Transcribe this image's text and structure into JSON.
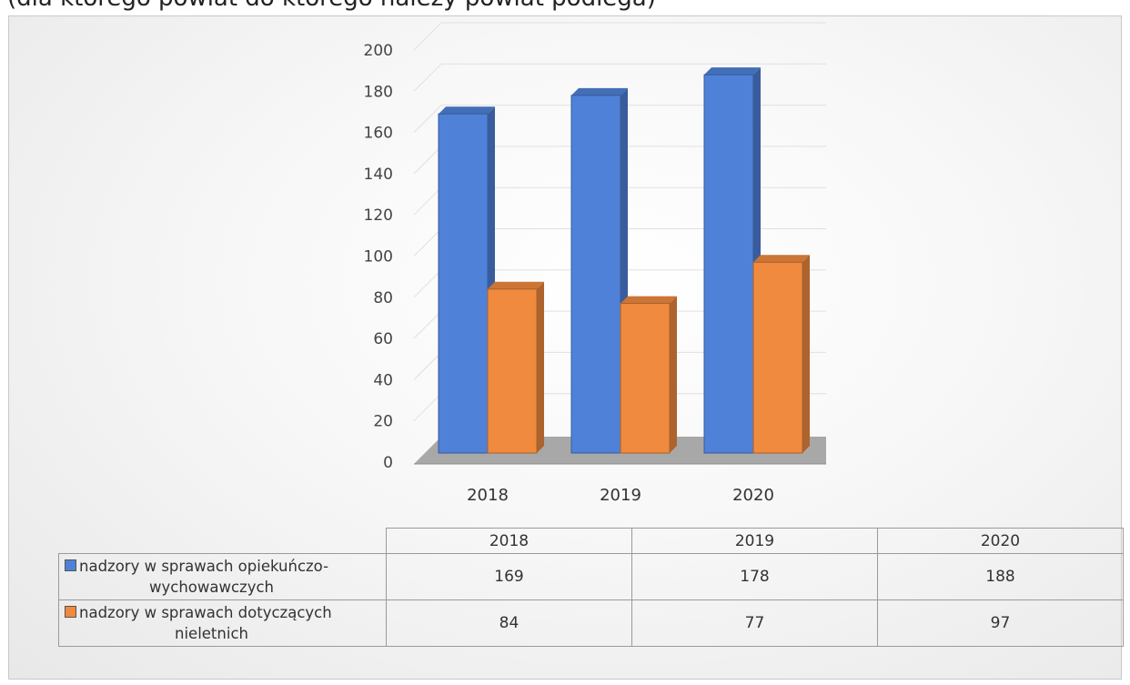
{
  "header_text": "(dla którego powiat do którego należy powiat podlega)",
  "colors": {
    "series_blue": "#4f81d8",
    "series_orange": "#f08a3e",
    "floor": "#a8a8a8",
    "grid": "#e0e0e0"
  },
  "chart_data": {
    "type": "bar",
    "categories": [
      "2018",
      "2019",
      "2020"
    ],
    "series": [
      {
        "name": "nadzory w sprawach opiekuńczo-wychowawczych",
        "name_line1": "nadzory w sprawach opiekuńczo-",
        "name_line2": "wychowawczych",
        "values": [
          169,
          178,
          188
        ]
      },
      {
        "name": "nadzory w sprawach dotyczących nieletnich",
        "name_line1": "nadzory w sprawach dotyczących",
        "name_line2": "nieletnich",
        "values": [
          84,
          77,
          97
        ]
      }
    ],
    "y_ticks": [
      "0",
      "20",
      "40",
      "60",
      "80",
      "100",
      "120",
      "140",
      "160",
      "180",
      "200"
    ],
    "ylim": [
      0,
      200
    ],
    "grid": true,
    "legend_placement": "data table below chart"
  },
  "table": {
    "header": [
      "2018",
      "2019",
      "2020"
    ],
    "rows": [
      {
        "values": [
          "169",
          "178",
          "188"
        ]
      },
      {
        "values": [
          "84",
          "77",
          "97"
        ]
      }
    ]
  }
}
